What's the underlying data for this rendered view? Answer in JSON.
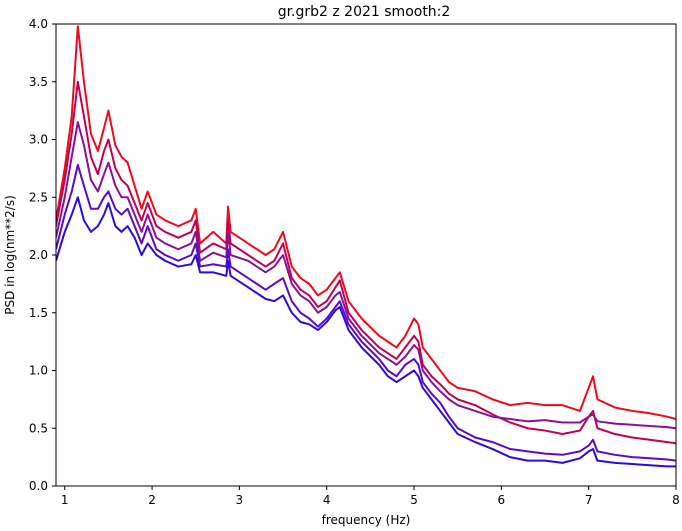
{
  "chart_data": {
    "type": "line",
    "title": "gr.grb2 z 2021 smooth:2",
    "xlabel": "frequency (Hz)",
    "ylabel": "PSD in log(nm**2/s)",
    "xlim": [
      0.9,
      8.0
    ],
    "ylim": [
      0.0,
      4.0
    ],
    "xticks": [
      1,
      2,
      3,
      4,
      5,
      6,
      7,
      8
    ],
    "yticks": [
      0.0,
      0.5,
      1.0,
      1.5,
      2.0,
      2.5,
      3.0,
      3.5,
      4.0
    ],
    "grid": false,
    "legend": "none",
    "series": [
      {
        "color": "#ee0a18",
        "x": [
          0.9,
          1.0,
          1.08,
          1.15,
          1.22,
          1.3,
          1.38,
          1.45,
          1.5,
          1.58,
          1.65,
          1.72,
          1.8,
          1.88,
          1.95,
          2.05,
          2.15,
          2.3,
          2.45,
          2.5,
          2.55,
          2.7,
          2.85,
          2.87,
          2.9,
          3.1,
          3.3,
          3.4,
          3.5,
          3.6,
          3.7,
          3.8,
          3.9,
          4.0,
          4.1,
          4.15,
          4.25,
          4.4,
          4.6,
          4.7,
          4.8,
          4.9,
          5.0,
          5.05,
          5.1,
          5.2,
          5.3,
          5.4,
          5.5,
          5.7,
          5.9,
          6.1,
          6.3,
          6.5,
          6.7,
          6.9,
          7.0,
          7.05,
          7.1,
          7.3,
          7.5,
          7.7,
          7.9,
          8.0
        ],
        "y": [
          2.3,
          2.75,
          3.2,
          3.98,
          3.5,
          3.05,
          2.9,
          3.1,
          3.25,
          2.95,
          2.85,
          2.8,
          2.6,
          2.4,
          2.55,
          2.35,
          2.3,
          2.25,
          2.3,
          2.4,
          2.1,
          2.2,
          2.1,
          2.42,
          2.2,
          2.1,
          2.0,
          2.05,
          2.2,
          1.9,
          1.8,
          1.75,
          1.65,
          1.7,
          1.8,
          1.85,
          1.6,
          1.45,
          1.3,
          1.25,
          1.2,
          1.3,
          1.45,
          1.4,
          1.2,
          1.1,
          1.0,
          0.9,
          0.85,
          0.82,
          0.75,
          0.7,
          0.72,
          0.7,
          0.7,
          0.65,
          0.85,
          0.95,
          0.75,
          0.68,
          0.65,
          0.63,
          0.6,
          0.58
        ]
      },
      {
        "color": "#c00055",
        "x": [
          0.9,
          1.0,
          1.08,
          1.15,
          1.22,
          1.3,
          1.38,
          1.45,
          1.5,
          1.58,
          1.65,
          1.72,
          1.8,
          1.88,
          1.95,
          2.05,
          2.15,
          2.3,
          2.45,
          2.5,
          2.55,
          2.7,
          2.85,
          2.87,
          2.9,
          3.1,
          3.3,
          3.4,
          3.5,
          3.6,
          3.7,
          3.8,
          3.9,
          4.0,
          4.1,
          4.15,
          4.25,
          4.4,
          4.6,
          4.7,
          4.8,
          4.9,
          5.0,
          5.05,
          5.1,
          5.2,
          5.3,
          5.4,
          5.5,
          5.7,
          5.9,
          6.1,
          6.3,
          6.5,
          6.7,
          6.9,
          7.0,
          7.05,
          7.1,
          7.3,
          7.5,
          7.7,
          7.9,
          8.0
        ],
        "y": [
          2.25,
          2.65,
          3.05,
          3.5,
          3.2,
          2.85,
          2.7,
          2.9,
          3.0,
          2.75,
          2.65,
          2.6,
          2.45,
          2.3,
          2.45,
          2.25,
          2.2,
          2.15,
          2.2,
          2.3,
          2.02,
          2.1,
          2.05,
          2.3,
          2.1,
          2.0,
          1.9,
          1.95,
          2.1,
          1.8,
          1.7,
          1.65,
          1.55,
          1.6,
          1.72,
          1.78,
          1.5,
          1.35,
          1.2,
          1.15,
          1.1,
          1.2,
          1.3,
          1.25,
          1.05,
          0.95,
          0.88,
          0.8,
          0.75,
          0.7,
          0.62,
          0.55,
          0.5,
          0.48,
          0.45,
          0.48,
          0.6,
          0.65,
          0.5,
          0.45,
          0.42,
          0.4,
          0.38,
          0.37
        ]
      },
      {
        "color": "#8a1095",
        "x": [
          0.9,
          1.0,
          1.08,
          1.15,
          1.22,
          1.3,
          1.38,
          1.45,
          1.5,
          1.58,
          1.65,
          1.72,
          1.8,
          1.88,
          1.95,
          2.05,
          2.15,
          2.3,
          2.45,
          2.5,
          2.55,
          2.7,
          2.85,
          2.87,
          2.9,
          3.1,
          3.3,
          3.4,
          3.5,
          3.6,
          3.7,
          3.8,
          3.9,
          4.0,
          4.1,
          4.15,
          4.25,
          4.4,
          4.6,
          4.7,
          4.8,
          4.9,
          5.0,
          5.05,
          5.1,
          5.2,
          5.3,
          5.4,
          5.5,
          5.7,
          5.9,
          6.1,
          6.3,
          6.5,
          6.7,
          6.9,
          7.0,
          7.05,
          7.1,
          7.3,
          7.5,
          7.7,
          7.9,
          8.0
        ],
        "y": [
          2.15,
          2.5,
          2.85,
          3.15,
          2.95,
          2.65,
          2.55,
          2.7,
          2.8,
          2.6,
          2.5,
          2.5,
          2.35,
          2.2,
          2.35,
          2.15,
          2.1,
          2.05,
          2.1,
          2.2,
          1.95,
          2.02,
          1.98,
          2.2,
          2.0,
          1.95,
          1.85,
          1.9,
          2.0,
          1.75,
          1.65,
          1.6,
          1.5,
          1.55,
          1.65,
          1.68,
          1.45,
          1.3,
          1.15,
          1.1,
          1.05,
          1.12,
          1.22,
          1.18,
          1.0,
          0.9,
          0.82,
          0.75,
          0.7,
          0.65,
          0.6,
          0.58,
          0.56,
          0.57,
          0.55,
          0.55,
          0.6,
          0.62,
          0.56,
          0.54,
          0.53,
          0.52,
          0.51,
          0.5
        ]
      },
      {
        "color": "#5a0ac8",
        "x": [
          0.9,
          1.0,
          1.08,
          1.15,
          1.22,
          1.3,
          1.38,
          1.45,
          1.5,
          1.58,
          1.65,
          1.72,
          1.8,
          1.88,
          1.95,
          2.05,
          2.15,
          2.3,
          2.45,
          2.5,
          2.55,
          2.7,
          2.85,
          2.87,
          2.9,
          3.1,
          3.3,
          3.4,
          3.5,
          3.6,
          3.7,
          3.8,
          3.9,
          4.0,
          4.1,
          4.15,
          4.25,
          4.4,
          4.6,
          4.7,
          4.8,
          4.9,
          5.0,
          5.05,
          5.1,
          5.2,
          5.3,
          5.4,
          5.5,
          5.7,
          5.9,
          6.1,
          6.3,
          6.5,
          6.7,
          6.9,
          7.0,
          7.05,
          7.1,
          7.3,
          7.5,
          7.7,
          7.9,
          8.0
        ],
        "y": [
          2.05,
          2.35,
          2.55,
          2.78,
          2.6,
          2.4,
          2.4,
          2.5,
          2.55,
          2.4,
          2.35,
          2.4,
          2.25,
          2.1,
          2.25,
          2.05,
          2.0,
          1.95,
          2.0,
          2.1,
          1.9,
          1.92,
          1.9,
          2.05,
          1.9,
          1.8,
          1.7,
          1.75,
          1.8,
          1.6,
          1.5,
          1.45,
          1.38,
          1.45,
          1.55,
          1.6,
          1.4,
          1.25,
          1.1,
          1.0,
          0.95,
          1.05,
          1.1,
          1.05,
          0.9,
          0.8,
          0.72,
          0.6,
          0.5,
          0.42,
          0.38,
          0.32,
          0.3,
          0.28,
          0.27,
          0.3,
          0.35,
          0.4,
          0.3,
          0.27,
          0.25,
          0.24,
          0.23,
          0.22
        ]
      },
      {
        "color": "#2a0ae0",
        "x": [
          0.9,
          1.0,
          1.08,
          1.15,
          1.22,
          1.3,
          1.38,
          1.45,
          1.5,
          1.58,
          1.65,
          1.72,
          1.8,
          1.88,
          1.95,
          2.05,
          2.15,
          2.3,
          2.45,
          2.5,
          2.55,
          2.7,
          2.85,
          2.87,
          2.9,
          3.1,
          3.3,
          3.4,
          3.5,
          3.6,
          3.7,
          3.8,
          3.9,
          4.0,
          4.1,
          4.15,
          4.25,
          4.4,
          4.6,
          4.7,
          4.8,
          4.9,
          5.0,
          5.05,
          5.1,
          5.2,
          5.3,
          5.4,
          5.5,
          5.7,
          5.9,
          6.1,
          6.3,
          6.5,
          6.7,
          6.9,
          7.0,
          7.05,
          7.1,
          7.3,
          7.5,
          7.7,
          7.9,
          8.0
        ],
        "y": [
          1.95,
          2.2,
          2.35,
          2.5,
          2.3,
          2.2,
          2.25,
          2.35,
          2.45,
          2.25,
          2.2,
          2.25,
          2.15,
          2.0,
          2.1,
          2.0,
          1.95,
          1.9,
          1.92,
          2.0,
          1.85,
          1.85,
          1.82,
          1.95,
          1.82,
          1.72,
          1.62,
          1.6,
          1.65,
          1.5,
          1.42,
          1.4,
          1.35,
          1.42,
          1.52,
          1.55,
          1.35,
          1.2,
          1.05,
          0.95,
          0.9,
          0.95,
          1.0,
          0.95,
          0.85,
          0.75,
          0.65,
          0.55,
          0.45,
          0.38,
          0.32,
          0.25,
          0.22,
          0.22,
          0.2,
          0.24,
          0.3,
          0.32,
          0.22,
          0.2,
          0.19,
          0.18,
          0.17,
          0.17
        ]
      }
    ]
  }
}
